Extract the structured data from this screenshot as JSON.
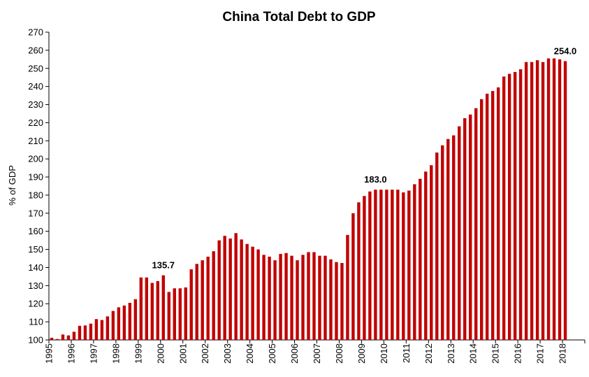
{
  "chart_data": {
    "type": "bar",
    "title": "China Total Debt to GDP",
    "xlabel": "",
    "ylabel": "% of GDP",
    "ylim": [
      100,
      270
    ],
    "y_ticks": [
      100,
      110,
      120,
      130,
      140,
      150,
      160,
      170,
      180,
      190,
      200,
      210,
      220,
      230,
      240,
      250,
      260,
      270
    ],
    "x_tick_labels": [
      "1995",
      "1996",
      "1997",
      "1998",
      "1999",
      "2000",
      "2001",
      "2002",
      "2003",
      "2004",
      "2005",
      "2006",
      "2007",
      "2008",
      "2009",
      "2010",
      "2011",
      "2012",
      "2013",
      "2014",
      "2015",
      "2016",
      "2017",
      "2018"
    ],
    "bars_per_year": 4,
    "bar_color": "#C00000",
    "grid": false,
    "legend": "none",
    "values": [
      101.2,
      100.5,
      103.0,
      102.5,
      104.5,
      107.8,
      108.0,
      109.0,
      111.5,
      111.0,
      113.0,
      116.0,
      118.0,
      119.0,
      120.5,
      122.5,
      134.5,
      134.5,
      131.5,
      132.5,
      135.7,
      126.5,
      128.5,
      128.5,
      129.0,
      139.0,
      142.0,
      144.0,
      146.0,
      149.0,
      155.0,
      157.5,
      156.0,
      159.0,
      155.5,
      153.0,
      151.5,
      150.0,
      147.0,
      146.0,
      144.0,
      147.5,
      148.0,
      146.5,
      144.0,
      147.0,
      148.5,
      148.5,
      146.5,
      146.5,
      144.5,
      143.0,
      142.5,
      158.0,
      170.0,
      176.0,
      179.5,
      182.0,
      183.0,
      183.0,
      183.0,
      183.0,
      183.0,
      181.5,
      182.5,
      186.0,
      189.0,
      193.0,
      196.5,
      203.5,
      207.5,
      211.0,
      213.0,
      218.0,
      222.5,
      224.5,
      228.0,
      233.0,
      236.0,
      237.5,
      239.5,
      245.5,
      247.0,
      248.0,
      249.5,
      253.5,
      253.5,
      254.5,
      253.5,
      255.5,
      255.5,
      255.0,
      254.0
    ],
    "annotations": [
      {
        "index": 20,
        "text": "135.7"
      },
      {
        "index": 58,
        "text": "183.0"
      },
      {
        "index": 92,
        "text": "254.0"
      }
    ]
  }
}
